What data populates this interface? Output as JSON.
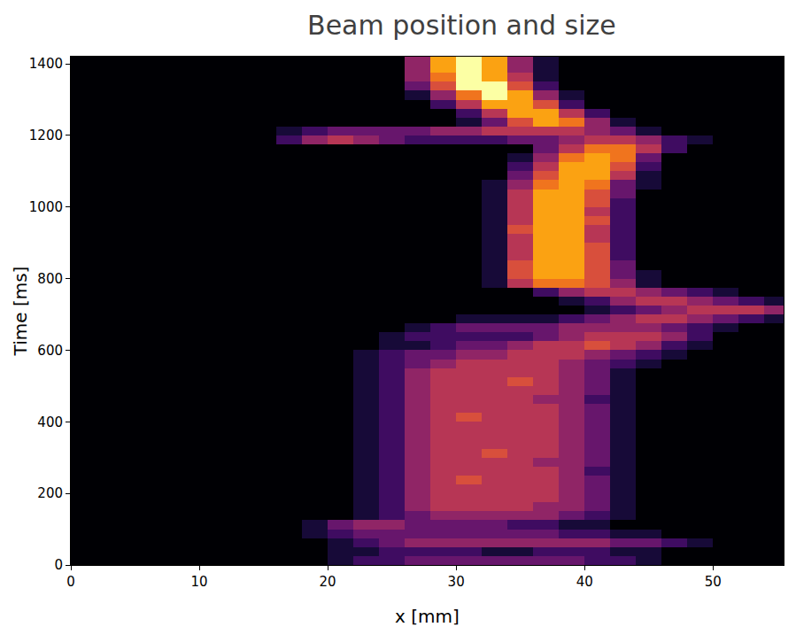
{
  "chart_data": {
    "type": "heatmap",
    "title": "Beam position and size",
    "x_label": "x [mm]",
    "y_label": "Time [ms]",
    "x": [
      17,
      19,
      21,
      23,
      25,
      27,
      29,
      31,
      33,
      35,
      37,
      39,
      41,
      43,
      45,
      47,
      49,
      51,
      53,
      55
    ],
    "y": [
      12.5,
      37.5,
      62.5,
      87.5,
      112.5,
      137.5,
      162.5,
      187.5,
      212.5,
      237.5,
      262.5,
      287.5,
      312.5,
      337.5,
      362.5,
      387.5,
      412.5,
      437.5,
      462.5,
      487.5,
      512.5,
      537.5,
      562.5,
      587.5,
      612.5,
      637.5,
      662.5,
      687.5,
      712.5,
      737.5,
      762.5,
      787.5,
      812.5,
      837.5,
      862.5,
      887.5,
      912.5,
      937.5,
      962.5,
      987.5,
      1012.5,
      1037.5,
      1062.5,
      1087.5,
      1112.5,
      1137.5,
      1162.5,
      1187.5,
      1212.5,
      1237.5,
      1262.5,
      1287.5,
      1312.5,
      1337.5,
      1362.5,
      1387.5,
      1412.5
    ],
    "z": [
      [
        0,
        0,
        1,
        2,
        2,
        3,
        3,
        3,
        3,
        3,
        3,
        3,
        2,
        2,
        1,
        0,
        0,
        0,
        0,
        0
      ],
      [
        0,
        0,
        1,
        1,
        2,
        2,
        2,
        2,
        1,
        1,
        2,
        2,
        2,
        1,
        1,
        0,
        0,
        0,
        0,
        0
      ],
      [
        0,
        0,
        1,
        2,
        3,
        4,
        4,
        4,
        4,
        4,
        4,
        4,
        4,
        3,
        3,
        2,
        1,
        0,
        0,
        0
      ],
      [
        0,
        1,
        2,
        3,
        3,
        3,
        3,
        3,
        3,
        3,
        3,
        2,
        2,
        1,
        1,
        0,
        0,
        0,
        0,
        0
      ],
      [
        0,
        1,
        3,
        4,
        4,
        3,
        3,
        3,
        3,
        2,
        2,
        1,
        1,
        0,
        0,
        0,
        0,
        0,
        0,
        0
      ],
      [
        0,
        0,
        0,
        1,
        2,
        3,
        4,
        4,
        4,
        4,
        4,
        3,
        2,
        1,
        0,
        0,
        0,
        0,
        0,
        0
      ],
      [
        0,
        0,
        0,
        1,
        2,
        4,
        5,
        5,
        5,
        5,
        4,
        4,
        3,
        1,
        0,
        0,
        0,
        0,
        0,
        0
      ],
      [
        0,
        0,
        0,
        1,
        2,
        4,
        5,
        5,
        5,
        5,
        5,
        4,
        3,
        1,
        0,
        0,
        0,
        0,
        0,
        0
      ],
      [
        0,
        0,
        0,
        1,
        2,
        4,
        5,
        5,
        5,
        5,
        5,
        4,
        3,
        1,
        0,
        0,
        0,
        0,
        0,
        0
      ],
      [
        0,
        0,
        0,
        1,
        2,
        4,
        5,
        6,
        5,
        5,
        5,
        4,
        3,
        1,
        0,
        0,
        0,
        0,
        0,
        0
      ],
      [
        0,
        0,
        0,
        1,
        2,
        4,
        5,
        5,
        5,
        5,
        5,
        4,
        2,
        1,
        0,
        0,
        0,
        0,
        0,
        0
      ],
      [
        0,
        0,
        0,
        1,
        2,
        4,
        5,
        5,
        5,
        5,
        4,
        4,
        3,
        1,
        0,
        0,
        0,
        0,
        0,
        0
      ],
      [
        0,
        0,
        0,
        1,
        2,
        4,
        5,
        5,
        6,
        5,
        5,
        4,
        3,
        1,
        0,
        0,
        0,
        0,
        0,
        0
      ],
      [
        0,
        0,
        0,
        1,
        2,
        4,
        5,
        5,
        5,
        5,
        5,
        4,
        3,
        1,
        0,
        0,
        0,
        0,
        0,
        0
      ],
      [
        0,
        0,
        0,
        1,
        2,
        4,
        5,
        5,
        5,
        5,
        5,
        4,
        3,
        1,
        0,
        0,
        0,
        0,
        0,
        0
      ],
      [
        0,
        0,
        0,
        1,
        2,
        4,
        5,
        5,
        5,
        5,
        5,
        4,
        3,
        1,
        0,
        0,
        0,
        0,
        0,
        0
      ],
      [
        0,
        0,
        0,
        1,
        2,
        4,
        5,
        6,
        5,
        5,
        5,
        4,
        3,
        1,
        0,
        0,
        0,
        0,
        0,
        0
      ],
      [
        0,
        0,
        0,
        1,
        2,
        4,
        5,
        5,
        5,
        5,
        5,
        4,
        3,
        1,
        0,
        0,
        0,
        0,
        0,
        0
      ],
      [
        0,
        0,
        0,
        1,
        2,
        4,
        5,
        5,
        5,
        5,
        4,
        4,
        2,
        1,
        0,
        0,
        0,
        0,
        0,
        0
      ],
      [
        0,
        0,
        0,
        1,
        2,
        4,
        5,
        5,
        5,
        5,
        5,
        4,
        3,
        1,
        0,
        0,
        0,
        0,
        0,
        0
      ],
      [
        0,
        0,
        0,
        1,
        2,
        4,
        5,
        5,
        5,
        6,
        5,
        4,
        3,
        1,
        0,
        0,
        0,
        0,
        0,
        0
      ],
      [
        0,
        0,
        0,
        1,
        2,
        4,
        5,
        5,
        5,
        5,
        5,
        4,
        3,
        1,
        0,
        0,
        0,
        0,
        0,
        0
      ],
      [
        0,
        0,
        0,
        1,
        2,
        3,
        4,
        5,
        5,
        5,
        5,
        4,
        3,
        2,
        1,
        0,
        0,
        0,
        0,
        0
      ],
      [
        0,
        0,
        0,
        1,
        2,
        3,
        3,
        4,
        4,
        5,
        5,
        5,
        4,
        3,
        2,
        1,
        0,
        0,
        0,
        0
      ],
      [
        0,
        0,
        0,
        0,
        1,
        1,
        2,
        3,
        3,
        4,
        5,
        5,
        6,
        5,
        4,
        2,
        1,
        0,
        0,
        0
      ],
      [
        0,
        0,
        0,
        0,
        1,
        2,
        2,
        2,
        2,
        2,
        3,
        4,
        5,
        5,
        5,
        4,
        2,
        0,
        0,
        0
      ],
      [
        0,
        0,
        0,
        0,
        0,
        1,
        2,
        3,
        3,
        3,
        3,
        4,
        4,
        4,
        4,
        3,
        2,
        1,
        0,
        0
      ],
      [
        0,
        0,
        0,
        0,
        0,
        0,
        0,
        1,
        1,
        1,
        1,
        2,
        3,
        4,
        5,
        5,
        4,
        3,
        2,
        1
      ],
      [
        0,
        0,
        0,
        0,
        0,
        0,
        0,
        0,
        0,
        0,
        0,
        0,
        1,
        2,
        3,
        4,
        5,
        5,
        5,
        4
      ],
      [
        0,
        0,
        0,
        0,
        0,
        0,
        0,
        0,
        0,
        0,
        0,
        1,
        2,
        4,
        5,
        5,
        4,
        3,
        2,
        1
      ],
      [
        0,
        0,
        0,
        0,
        0,
        0,
        0,
        0,
        0,
        0,
        2,
        4,
        5,
        5,
        4,
        3,
        2,
        1,
        0,
        0
      ],
      [
        0,
        0,
        0,
        0,
        0,
        0,
        0,
        0,
        1,
        5,
        7,
        7,
        6,
        4,
        1,
        0,
        0,
        0,
        0,
        0
      ],
      [
        0,
        0,
        0,
        0,
        0,
        0,
        0,
        0,
        1,
        6,
        8,
        8,
        6,
        3,
        1,
        0,
        0,
        0,
        0,
        0
      ],
      [
        0,
        0,
        0,
        0,
        0,
        0,
        0,
        0,
        1,
        6,
        8,
        8,
        6,
        3,
        0,
        0,
        0,
        0,
        0,
        0
      ],
      [
        0,
        0,
        0,
        0,
        0,
        0,
        0,
        0,
        1,
        5,
        8,
        8,
        6,
        2,
        0,
        0,
        0,
        0,
        0,
        0
      ],
      [
        0,
        0,
        0,
        0,
        0,
        0,
        0,
        0,
        1,
        5,
        8,
        8,
        6,
        2,
        0,
        0,
        0,
        0,
        0,
        0
      ],
      [
        0,
        0,
        0,
        0,
        0,
        0,
        0,
        0,
        1,
        5,
        8,
        8,
        5,
        2,
        0,
        0,
        0,
        0,
        0,
        0
      ],
      [
        0,
        0,
        0,
        0,
        0,
        0,
        0,
        0,
        1,
        6,
        8,
        8,
        5,
        2,
        0,
        0,
        0,
        0,
        0,
        0
      ],
      [
        0,
        0,
        0,
        0,
        0,
        0,
        0,
        0,
        1,
        5,
        8,
        8,
        6,
        2,
        0,
        0,
        0,
        0,
        0,
        0
      ],
      [
        0,
        0,
        0,
        0,
        0,
        0,
        0,
        0,
        1,
        5,
        8,
        8,
        5,
        2,
        0,
        0,
        0,
        0,
        0,
        0
      ],
      [
        0,
        0,
        0,
        0,
        0,
        0,
        0,
        0,
        1,
        5,
        8,
        8,
        6,
        2,
        0,
        0,
        0,
        0,
        0,
        0
      ],
      [
        0,
        0,
        0,
        0,
        0,
        0,
        0,
        0,
        1,
        5,
        8,
        8,
        6,
        3,
        0,
        0,
        0,
        0,
        0,
        0
      ],
      [
        0,
        0,
        0,
        0,
        0,
        0,
        0,
        0,
        1,
        4,
        7,
        8,
        7,
        3,
        1,
        0,
        0,
        0,
        0,
        0
      ],
      [
        0,
        0,
        0,
        0,
        0,
        0,
        0,
        0,
        0,
        3,
        6,
        8,
        8,
        5,
        1,
        0,
        0,
        0,
        0,
        0
      ],
      [
        0,
        0,
        0,
        0,
        0,
        0,
        0,
        0,
        0,
        2,
        5,
        8,
        8,
        6,
        2,
        0,
        0,
        0,
        0,
        0
      ],
      [
        0,
        0,
        0,
        0,
        0,
        0,
        0,
        0,
        0,
        1,
        4,
        7,
        8,
        7,
        3,
        0,
        0,
        0,
        0,
        0
      ],
      [
        0,
        0,
        0,
        0,
        0,
        0,
        0,
        0,
        0,
        0,
        3,
        5,
        7,
        7,
        5,
        2,
        0,
        0,
        0,
        0
      ],
      [
        2,
        4,
        5,
        4,
        3,
        2,
        2,
        2,
        2,
        3,
        3,
        4,
        5,
        5,
        4,
        2,
        1,
        0,
        0,
        0
      ],
      [
        1,
        2,
        3,
        3,
        3,
        3,
        4,
        4,
        5,
        5,
        5,
        5,
        4,
        3,
        1,
        0,
        0,
        0,
        0,
        0
      ],
      [
        0,
        0,
        0,
        0,
        0,
        0,
        0,
        1,
        3,
        6,
        8,
        7,
        4,
        1,
        0,
        0,
        0,
        0,
        0,
        0
      ],
      [
        0,
        0,
        0,
        0,
        0,
        0,
        0,
        2,
        5,
        8,
        8,
        5,
        2,
        0,
        0,
        0,
        0,
        0,
        0,
        0
      ],
      [
        0,
        0,
        0,
        0,
        0,
        0,
        2,
        5,
        8,
        8,
        6,
        2,
        0,
        0,
        0,
        0,
        0,
        0,
        0,
        0
      ],
      [
        0,
        0,
        0,
        0,
        0,
        1,
        4,
        7,
        9,
        8,
        4,
        1,
        0,
        0,
        0,
        0,
        0,
        0,
        0,
        0
      ],
      [
        0,
        0,
        0,
        0,
        0,
        3,
        6,
        9,
        9,
        6,
        2,
        0,
        0,
        0,
        0,
        0,
        0,
        0,
        0,
        0
      ],
      [
        0,
        0,
        0,
        0,
        0,
        4,
        7,
        9,
        8,
        5,
        1,
        0,
        0,
        0,
        0,
        0,
        0,
        0,
        0,
        0
      ],
      [
        0,
        0,
        0,
        0,
        0,
        4,
        8,
        9,
        8,
        4,
        1,
        0,
        0,
        0,
        0,
        0,
        0,
        0,
        0,
        0
      ],
      [
        0,
        0,
        0,
        0,
        0,
        4,
        8,
        9,
        8,
        4,
        1,
        0,
        0,
        0,
        0,
        0,
        0,
        0,
        0,
        0
      ]
    ],
    "zlim": [
      0,
      9
    ],
    "xlim": [
      0,
      55.5
    ],
    "ylim": [
      0,
      1420
    ],
    "xticks": [
      0,
      10,
      20,
      30,
      40,
      50
    ],
    "yticks": [
      0,
      200,
      400,
      600,
      800,
      1000,
      1200,
      1400
    ]
  }
}
